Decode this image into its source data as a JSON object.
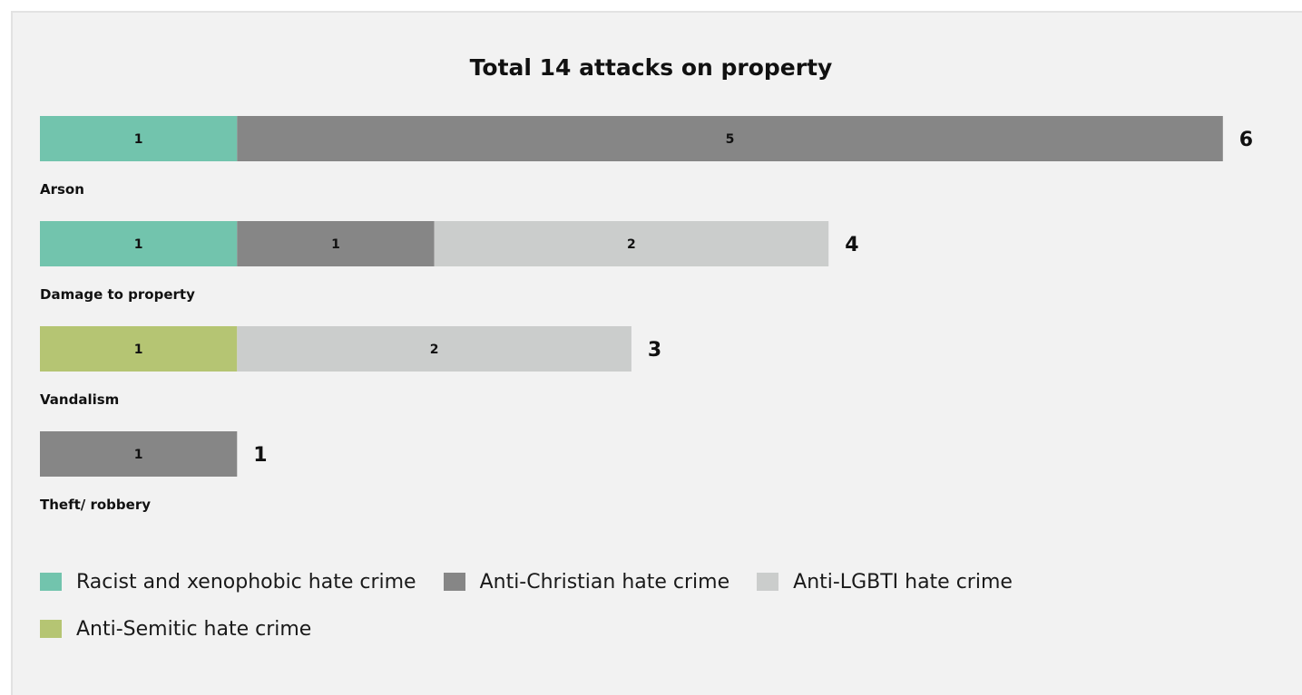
{
  "chart_data": {
    "type": "bar",
    "orientation": "horizontal",
    "stacked": true,
    "title": "Total 14 attacks on property",
    "categories": [
      "Arson",
      "Damage to property",
      "Vandalism",
      "Theft/ robbery"
    ],
    "series": [
      {
        "name": "Racist and xenophobic hate crime",
        "color": "#72c4ad",
        "values": [
          1,
          1,
          0,
          0
        ]
      },
      {
        "name": "Anti-Semitic hate crime",
        "color": "#b5c573",
        "values": [
          0,
          0,
          1,
          0
        ]
      },
      {
        "name": "Anti-Christian hate crime",
        "color": "#868686",
        "values": [
          5,
          1,
          0,
          1
        ]
      },
      {
        "name": "Anti-LGBTI hate crime",
        "color": "#cbcdcc",
        "values": [
          0,
          2,
          2,
          0
        ]
      }
    ],
    "totals": [
      6,
      4,
      3,
      1
    ],
    "xlim": [
      0,
      6
    ],
    "grid": false,
    "legend_position": "bottom",
    "legend_order": [
      "Racist and xenophobic hate crime",
      "Anti-Christian hate crime",
      "Anti-LGBTI hate crime",
      "Anti-Semitic hate crime"
    ]
  }
}
